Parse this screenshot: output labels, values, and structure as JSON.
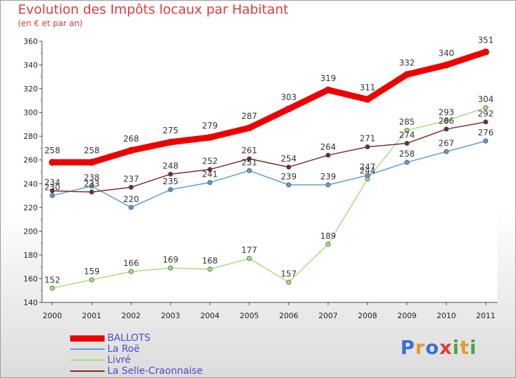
{
  "header": {
    "title": "Evolution des Impôts locaux par Habitant",
    "subtitle": "(en € et par an)"
  },
  "logo": {
    "text": "Proxiti",
    "colors": [
      "#3a6fd1",
      "#e89a2c",
      "#3a6fd1",
      "#e53a3a",
      "#4aa84a",
      "#e89a2c",
      "#4aa84a"
    ]
  },
  "chart_data": {
    "type": "line",
    "x": [
      "2000",
      "2001",
      "2002",
      "2003",
      "2004",
      "2005",
      "2006",
      "2007",
      "2008",
      "2009",
      "2010",
      "2011"
    ],
    "ylim": [
      140,
      360
    ],
    "yticks": [
      140,
      160,
      180,
      200,
      220,
      240,
      260,
      280,
      300,
      320,
      340,
      360
    ],
    "grid": false,
    "legend_position": "bottom-left",
    "series": [
      {
        "name": "BALLOTS",
        "color": "#ee0000",
        "values": [
          258,
          258,
          268,
          275,
          279,
          287,
          303,
          319,
          311,
          332,
          340,
          351
        ]
      },
      {
        "name": "La Roë",
        "color": "#5b9bd5",
        "values": [
          230,
          238,
          220,
          235,
          241,
          251,
          239,
          239,
          247,
          258,
          267,
          276
        ]
      },
      {
        "name": "Livré",
        "color": "#a6e07a",
        "values": [
          152,
          159,
          166,
          169,
          168,
          177,
          157,
          189,
          244,
          285,
          293,
          304
        ]
      },
      {
        "name": "La Selle-Craonnaise",
        "color": "#7a2a2a",
        "values": [
          234,
          233,
          237,
          248,
          252,
          261,
          254,
          264,
          271,
          274,
          286,
          292
        ]
      }
    ]
  }
}
